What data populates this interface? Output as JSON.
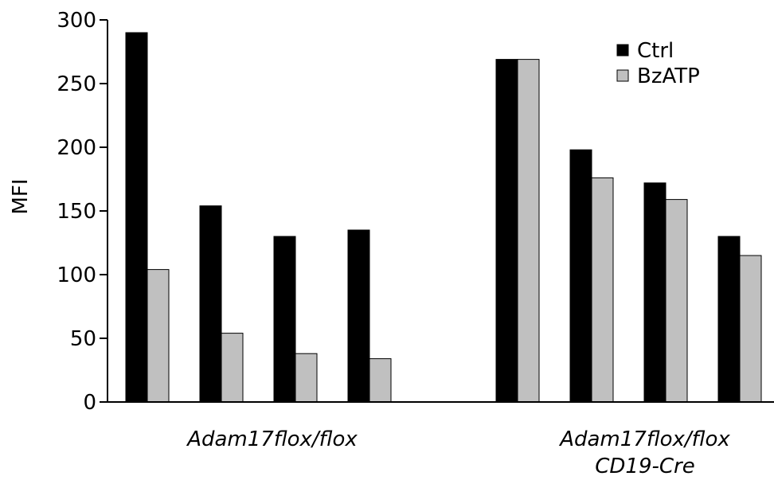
{
  "chart_data": {
    "type": "bar",
    "ylabel": "MFI",
    "ylim": [
      0,
      300
    ],
    "yticks": [
      0,
      50,
      100,
      150,
      200,
      250,
      300
    ],
    "groups": [
      {
        "label_lines": [
          "Adam17flox/flox"
        ],
        "pair_indices": [
          0,
          1,
          2,
          3
        ]
      },
      {
        "label_lines": [
          "Adam17flox/flox",
          "CD19-Cre"
        ],
        "pair_indices": [
          4,
          5,
          6,
          7
        ]
      }
    ],
    "series": [
      {
        "name": "Ctrl",
        "color": "#000000",
        "values": [
          290,
          154,
          130,
          135,
          269,
          198,
          172,
          130
        ]
      },
      {
        "name": "BzATP",
        "color": "#c0c0c0",
        "values": [
          104,
          54,
          38,
          34,
          269,
          176,
          159,
          115
        ]
      }
    ],
    "legend_position": "top-right",
    "grid": false
  }
}
